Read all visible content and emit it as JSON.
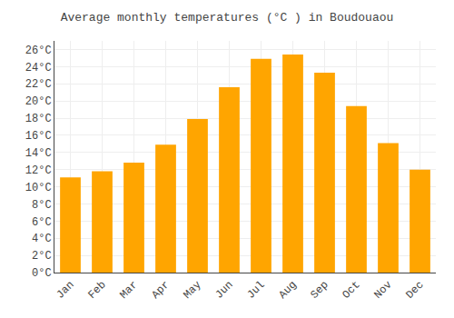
{
  "chart_data": {
    "type": "bar",
    "title": "Average monthly temperatures (°C ) in Boudouaou",
    "categories": [
      "Jan",
      "Feb",
      "Mar",
      "Apr",
      "May",
      "Jun",
      "Jul",
      "Aug",
      "Sep",
      "Oct",
      "Nov",
      "Dec"
    ],
    "values": [
      11.1,
      11.8,
      12.8,
      14.9,
      17.9,
      21.6,
      24.9,
      25.4,
      23.3,
      19.4,
      15.1,
      12.0
    ],
    "color": "#FFA500",
    "ylim": [
      0,
      27
    ],
    "yticks": [
      {
        "value": 0,
        "label": "0°C"
      },
      {
        "value": 2,
        "label": "2°C"
      },
      {
        "value": 4,
        "label": "4°C"
      },
      {
        "value": 6,
        "label": "6°C"
      },
      {
        "value": 8,
        "label": "8°C"
      },
      {
        "value": 10,
        "label": "10°C"
      },
      {
        "value": 12,
        "label": "12°C"
      },
      {
        "value": 14,
        "label": "14°C"
      },
      {
        "value": 16,
        "label": "16°C"
      },
      {
        "value": 18,
        "label": "18°C"
      },
      {
        "value": 20,
        "label": "20°C"
      },
      {
        "value": 22,
        "label": "22°C"
      },
      {
        "value": 24,
        "label": "24°C"
      },
      {
        "value": 26,
        "label": "26°C"
      }
    ],
    "grid": true
  }
}
